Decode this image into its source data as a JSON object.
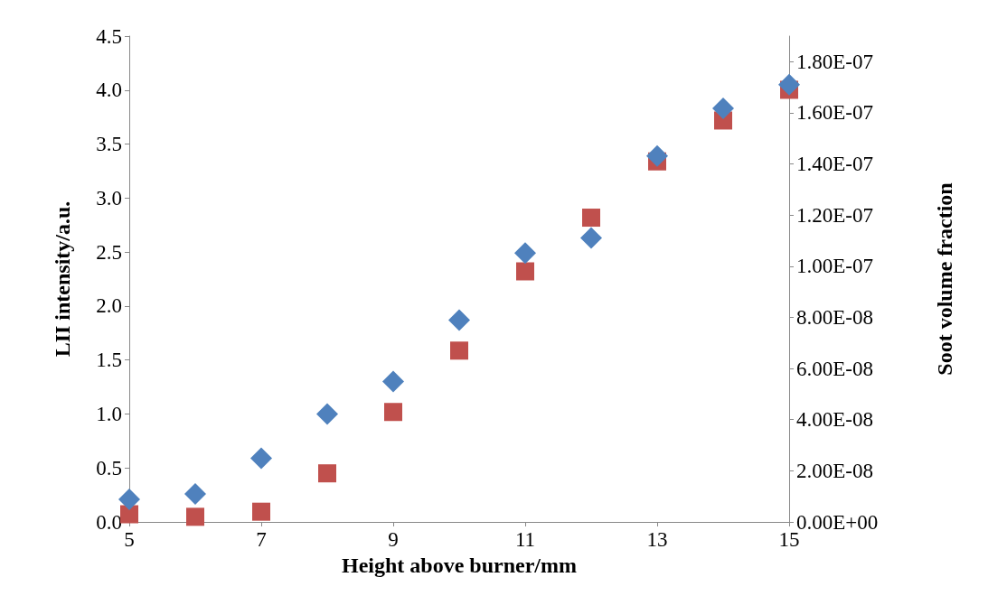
{
  "chart_data": {
    "type": "scatter",
    "xlabel": "Height above burner/mm",
    "ylabel": "LII intensity/a.u.",
    "y2label": "Soot volume fraction",
    "x": [
      5,
      6,
      7,
      8,
      9,
      10,
      11,
      12,
      13,
      14,
      15
    ],
    "series": [
      {
        "color": "#4f81bd",
        "marker": "diamond",
        "values": [
          0.21,
          0.26,
          0.59,
          1.0,
          1.3,
          1.87,
          2.49,
          2.63,
          3.39,
          3.83,
          4.05
        ]
      },
      {
        "color": "#c0504d",
        "marker": "square",
        "axis": "y2",
        "values": [
          3e-09,
          2e-09,
          4e-09,
          1.9e-08,
          4.3e-08,
          6.7e-08,
          9.8e-08,
          1.19e-07,
          1.41e-07,
          1.57e-07,
          1.69e-07
        ]
      }
    ],
    "xlim": [
      5,
      15
    ],
    "xticks": [
      5,
      7,
      9,
      11,
      13,
      15
    ],
    "ylim": [
      0,
      4.5
    ],
    "yticks": [
      {
        "value": 0,
        "label": "0.0"
      },
      {
        "value": 0.5,
        "label": "0.5"
      },
      {
        "value": 1,
        "label": "1.0"
      },
      {
        "value": 1.5,
        "label": "1.5"
      },
      {
        "value": 2,
        "label": "2.0"
      },
      {
        "value": 2.5,
        "label": "2.5"
      },
      {
        "value": 3,
        "label": "3.0"
      },
      {
        "value": 3.5,
        "label": "3.5"
      },
      {
        "value": 4,
        "label": "4.0"
      },
      {
        "value": 4.5,
        "label": "4.5"
      }
    ],
    "y2lim": [
      0,
      1.9e-07
    ],
    "y2ticks": [
      {
        "value": 0,
        "label": "0.00E+00"
      },
      {
        "value": 2e-08,
        "label": "2.00E-08"
      },
      {
        "value": 4e-08,
        "label": "4.00E-08"
      },
      {
        "value": 6e-08,
        "label": "6.00E-08"
      },
      {
        "value": 8e-08,
        "label": "8.00E-08"
      },
      {
        "value": 1e-07,
        "label": "1.00E-07"
      },
      {
        "value": 1.2e-07,
        "label": "1.20E-07"
      },
      {
        "value": 1.4e-07,
        "label": "1.40E-07"
      },
      {
        "value": 1.6e-07,
        "label": "1.60E-07"
      },
      {
        "value": 1.8e-07,
        "label": "1.80E-07"
      }
    ],
    "grid": false
  }
}
